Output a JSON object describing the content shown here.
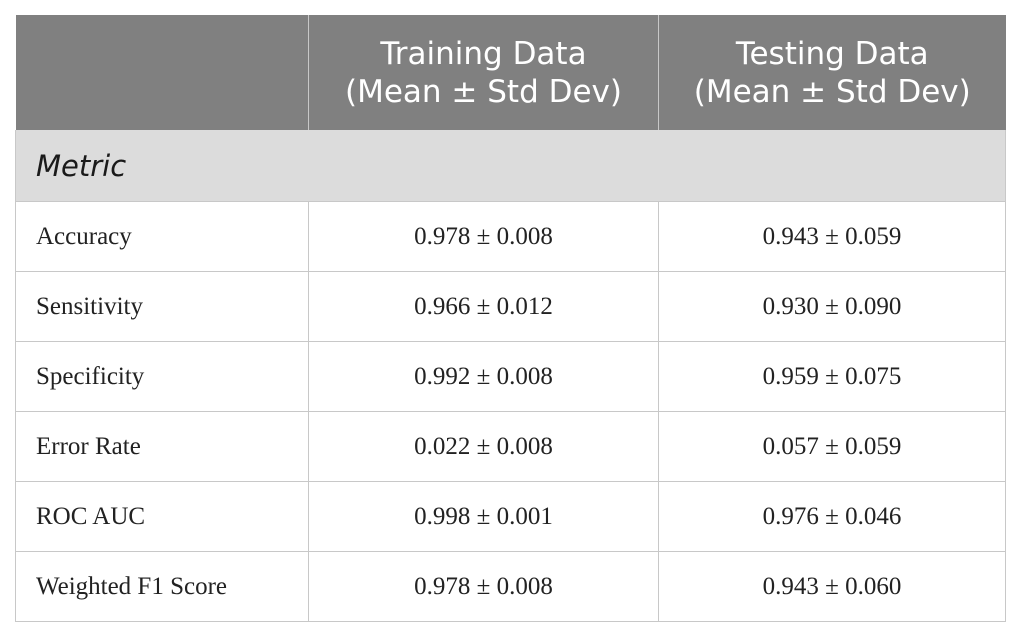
{
  "table": {
    "header": {
      "col1_line1": "Training Data",
      "col1_line2": "(Mean ± Std Dev)",
      "col2_line1": "Testing Data",
      "col2_line2": "(Mean ± Std Dev)"
    },
    "section_label": "Metric",
    "rows": [
      {
        "metric": "Accuracy",
        "training": "0.978 ± 0.008",
        "testing": "0.943 ± 0.059"
      },
      {
        "metric": "Sensitivity",
        "training": "0.966 ± 0.012",
        "testing": "0.930 ± 0.090"
      },
      {
        "metric": "Specificity",
        "training": "0.992 ± 0.008",
        "testing": "0.959 ± 0.075"
      },
      {
        "metric": "Error Rate",
        "training": "0.022 ± 0.008",
        "testing": "0.057 ± 0.059"
      },
      {
        "metric": "ROC AUC",
        "training": "0.998 ± 0.001",
        "testing": "0.976 ± 0.046"
      },
      {
        "metric": "Weighted F1 Score",
        "training": "0.978 ± 0.008",
        "testing": "0.943 ± 0.060"
      }
    ]
  }
}
